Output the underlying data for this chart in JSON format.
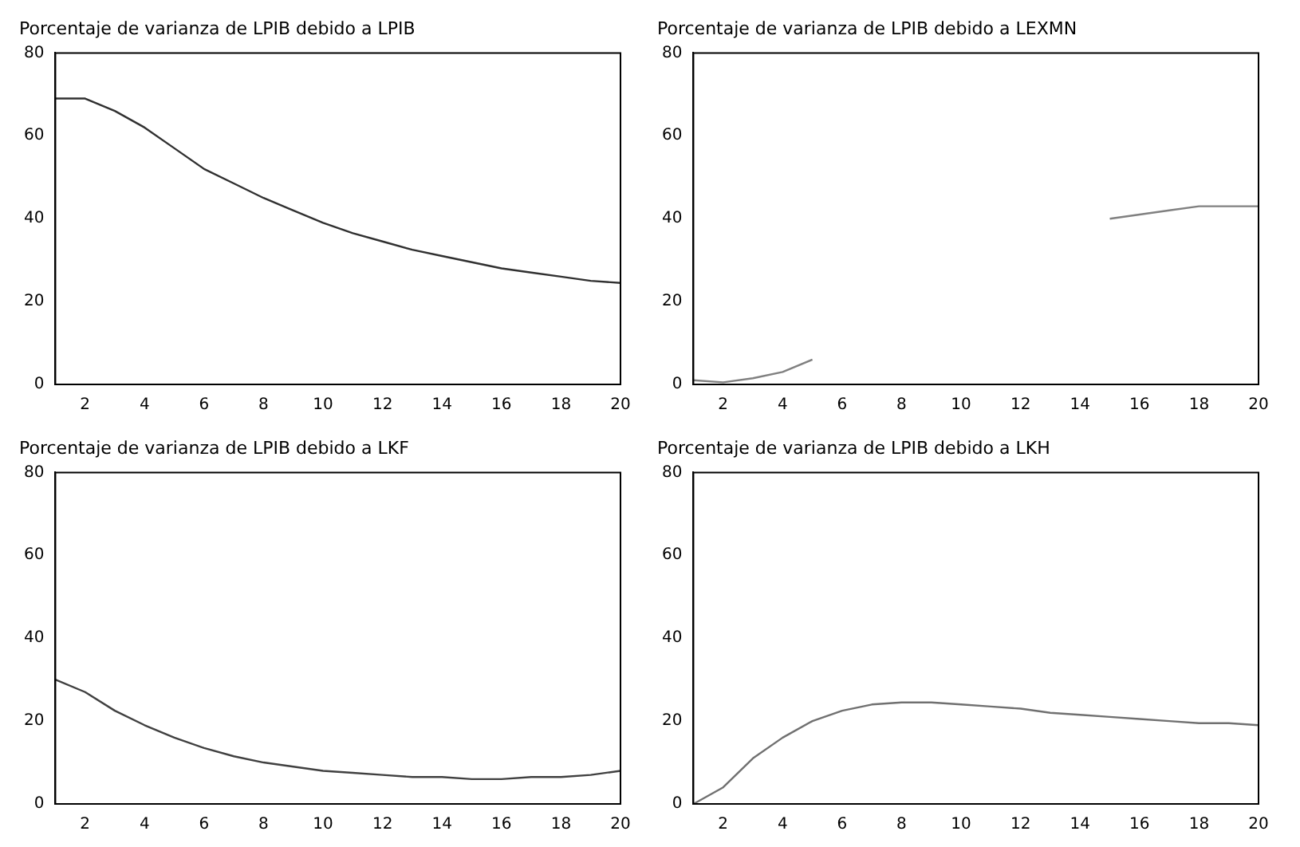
{
  "chart_data": [
    {
      "type": "line",
      "title": "Porcentaje de varianza de LPIB debido a LPIB",
      "x": [
        1,
        2,
        3,
        4,
        5,
        6,
        7,
        8,
        9,
        10,
        11,
        12,
        13,
        14,
        15,
        16,
        17,
        18,
        19,
        20
      ],
      "values": [
        69,
        69,
        66,
        62,
        57,
        52,
        48.5,
        45,
        42,
        39,
        36.5,
        34.5,
        32.5,
        31,
        29.5,
        28,
        27,
        26,
        25,
        24.5
      ],
      "color": "#303030",
      "xlim": [
        1,
        20
      ],
      "xticks": [
        2,
        4,
        6,
        8,
        10,
        12,
        14,
        16,
        18,
        20
      ],
      "ylim": [
        0,
        80
      ],
      "yticks": [
        0,
        20,
        40,
        60,
        80
      ],
      "grid": false,
      "legend": false
    },
    {
      "type": "line",
      "title": "Porcentaje de varianza de LPIB debido a LEXMN",
      "x": [
        1,
        2,
        3,
        4,
        5,
        6,
        7,
        8,
        9,
        10,
        11,
        12,
        13,
        14,
        15,
        16,
        17,
        18,
        19,
        20
      ],
      "values": [
        1,
        0.5,
        1.5,
        3,
        6,
        null,
        null,
        null,
        null,
        null,
        null,
        null,
        null,
        null,
        40,
        41,
        42,
        43,
        43,
        43
      ],
      "color": "#808080",
      "xlim": [
        1,
        20
      ],
      "xticks": [
        2,
        4,
        6,
        8,
        10,
        12,
        14,
        16,
        18,
        20
      ],
      "ylim": [
        0,
        80
      ],
      "yticks": [
        0,
        20,
        40,
        60,
        80
      ],
      "grid": false,
      "legend": false
    },
    {
      "type": "line",
      "title": "Porcentaje de varianza de LPIB debido a LKF",
      "x": [
        1,
        2,
        3,
        4,
        5,
        6,
        7,
        8,
        9,
        10,
        11,
        12,
        13,
        14,
        15,
        16,
        17,
        18,
        19,
        20
      ],
      "values": [
        30,
        27,
        22.5,
        19,
        16,
        13.5,
        11.5,
        10,
        9,
        8,
        7.5,
        7,
        6.5,
        6.5,
        6,
        6,
        6.5,
        6.5,
        7,
        8
      ],
      "color": "#404040",
      "xlim": [
        1,
        20
      ],
      "xticks": [
        2,
        4,
        6,
        8,
        10,
        12,
        14,
        16,
        18,
        20
      ],
      "ylim": [
        0,
        80
      ],
      "yticks": [
        0,
        20,
        40,
        60,
        80
      ],
      "grid": false,
      "legend": false
    },
    {
      "type": "line",
      "title": "Porcentaje de varianza de LPIB debido a LKH",
      "x": [
        1,
        2,
        3,
        4,
        5,
        6,
        7,
        8,
        9,
        10,
        11,
        12,
        13,
        14,
        15,
        16,
        17,
        18,
        19,
        20
      ],
      "values": [
        0,
        4,
        11,
        16,
        20,
        22.5,
        24,
        24.5,
        24.5,
        24,
        23.5,
        23,
        22,
        21.5,
        21,
        20.5,
        20,
        19.5,
        19.5,
        19
      ],
      "color": "#707070",
      "xlim": [
        1,
        20
      ],
      "xticks": [
        2,
        4,
        6,
        8,
        10,
        12,
        14,
        16,
        18,
        20
      ],
      "ylim": [
        0,
        80
      ],
      "yticks": [
        0,
        20,
        40,
        60,
        80
      ],
      "grid": false,
      "legend": false
    }
  ]
}
